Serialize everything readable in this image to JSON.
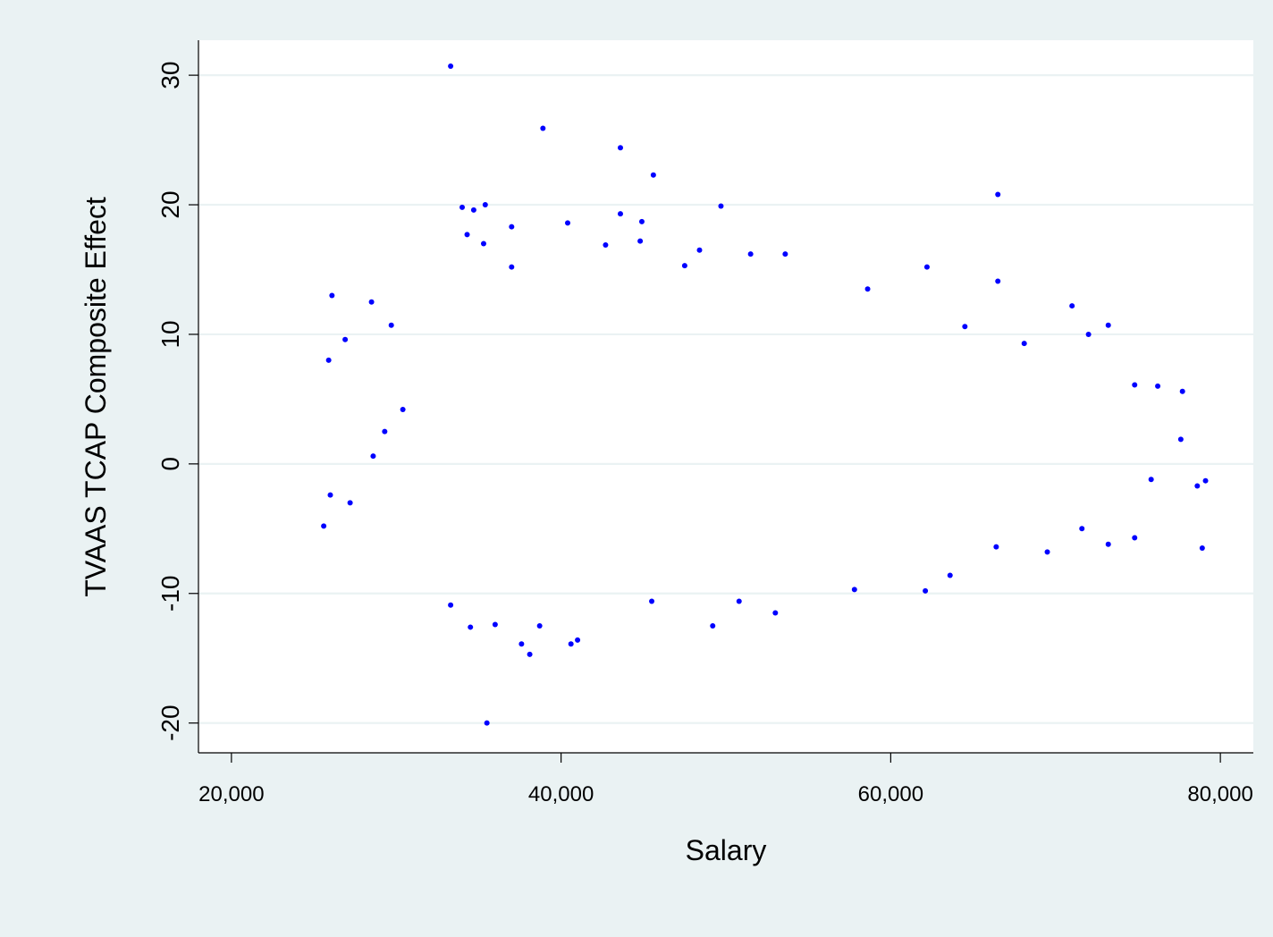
{
  "chart_data": {
    "type": "scatter",
    "title": "",
    "xlabel": "Salary",
    "ylabel": "TVAAS TCAP Composite Effect",
    "xlim": [
      18000,
      82000
    ],
    "ylim": [
      -22.3,
      32.7
    ],
    "xticks": [
      20000,
      40000,
      60000,
      80000
    ],
    "xtick_labels": [
      "20,000",
      "40,000",
      "60,000",
      "80,000"
    ],
    "yticks": [
      -20,
      -10,
      0,
      10,
      20,
      30
    ],
    "ytick_labels": [
      "-20",
      "-10",
      "0",
      "10",
      "20",
      "30"
    ],
    "grid": "horizontal",
    "legend": "none",
    "colors": {
      "outer_background": "#eaf2f3",
      "plot_background": "#ffffff",
      "gridline": "#eaf2f3",
      "marker": "#0000ff"
    },
    "series": [
      {
        "values": [
          [
            33300,
            30.7
          ],
          [
            38900,
            25.9
          ],
          [
            43600,
            24.4
          ],
          [
            45600,
            22.3
          ],
          [
            66500,
            20.8
          ],
          [
            34000,
            19.8
          ],
          [
            34700,
            19.6
          ],
          [
            43600,
            19.3
          ],
          [
            49700,
            19.9
          ],
          [
            35400,
            20.0
          ],
          [
            37000,
            18.3
          ],
          [
            40400,
            18.6
          ],
          [
            44900,
            18.7
          ],
          [
            34300,
            17.7
          ],
          [
            35300,
            17.0
          ],
          [
            42700,
            16.9
          ],
          [
            44800,
            17.2
          ],
          [
            48400,
            16.5
          ],
          [
            51500,
            16.2
          ],
          [
            53600,
            16.2
          ],
          [
            37000,
            15.2
          ],
          [
            47500,
            15.3
          ],
          [
            62200,
            15.2
          ],
          [
            66500,
            14.1
          ],
          [
            58600,
            13.5
          ],
          [
            26100,
            13.0
          ],
          [
            28500,
            12.5
          ],
          [
            71000,
            12.2
          ],
          [
            73200,
            10.7
          ],
          [
            72000,
            10.0
          ],
          [
            25900,
            8.0
          ],
          [
            26900,
            9.6
          ],
          [
            29700,
            10.7
          ],
          [
            64500,
            10.6
          ],
          [
            68100,
            9.3
          ],
          [
            76200,
            6.0
          ],
          [
            74800,
            6.1
          ],
          [
            77700,
            5.6
          ],
          [
            77600,
            1.9
          ],
          [
            75800,
            -1.2
          ],
          [
            79100,
            -1.3
          ],
          [
            78600,
            -1.7
          ],
          [
            78900,
            -6.5
          ],
          [
            74800,
            -5.7
          ],
          [
            73200,
            -6.2
          ],
          [
            71600,
            -5.0
          ],
          [
            69500,
            -6.8
          ],
          [
            66400,
            -6.4
          ],
          [
            63600,
            -8.6
          ],
          [
            62100,
            -9.8
          ],
          [
            57800,
            -9.7
          ],
          [
            53000,
            -11.5
          ],
          [
            50800,
            -10.6
          ],
          [
            49200,
            -12.5
          ],
          [
            45500,
            -10.6
          ],
          [
            41000,
            -13.6
          ],
          [
            40600,
            -13.9
          ],
          [
            38700,
            -12.5
          ],
          [
            37600,
            -13.9
          ],
          [
            38100,
            -14.7
          ],
          [
            36000,
            -12.4
          ],
          [
            34500,
            -12.6
          ],
          [
            33300,
            -10.9
          ],
          [
            35500,
            -20.0
          ],
          [
            25600,
            -4.8
          ],
          [
            26000,
            -2.4
          ],
          [
            27200,
            -3.0
          ],
          [
            28600,
            0.6
          ],
          [
            29300,
            2.5
          ],
          [
            30400,
            4.2
          ]
        ]
      }
    ]
  }
}
